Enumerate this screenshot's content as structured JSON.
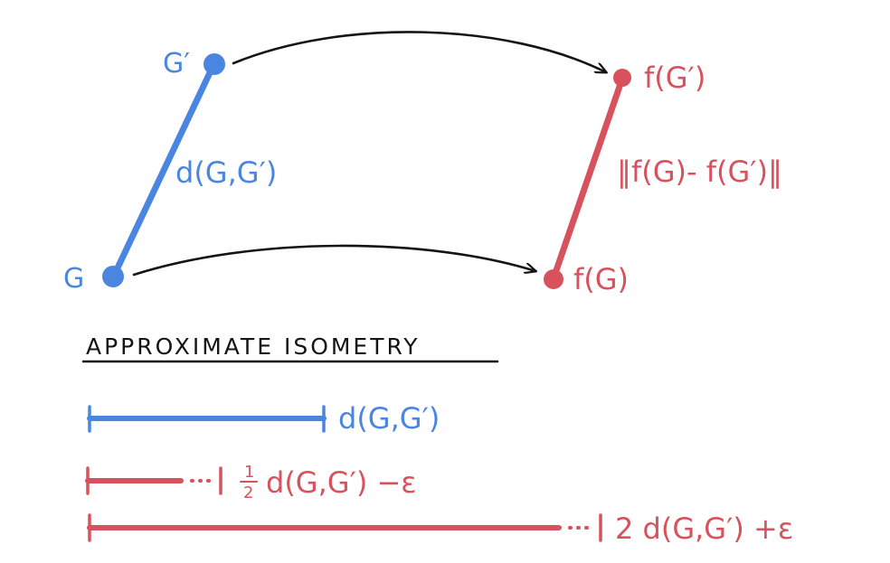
{
  "colors": {
    "blue": "#4a86e0",
    "red": "#d7525d",
    "ink": "#141414"
  },
  "diagram": {
    "label_g_prime": "G′",
    "label_g": "G",
    "label_f_g_prime": "f(G′)",
    "label_f_g": "f(G)",
    "label_distance": "d(G,G′)",
    "label_image_distance": "‖f(G)- f(G′)‖"
  },
  "legend": {
    "title": "APPROXIMATE ISOMETRY",
    "row1_label": "d(G,G′)",
    "row2_frac_num": "1",
    "row2_frac_den": "2",
    "row2_label": "d(G,G′) −ε",
    "row3_label": "2 d(G,G′) +ε"
  }
}
